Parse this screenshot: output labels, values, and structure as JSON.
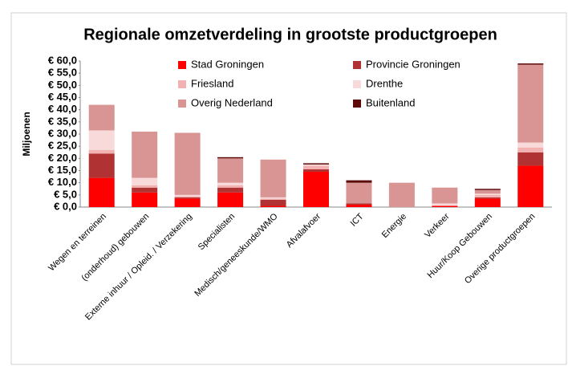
{
  "chart_data": {
    "type": "stacked_bar",
    "title": "Regionale omzetverdeling in grootste productgroepen",
    "y_axis_label": "Miljoenen",
    "categories": [
      "Wegen en terreinen",
      "(onderhoud) gebouwen",
      "Externe inhuur / Opleid. / Verzekering",
      "Specialisten",
      "Medisch/geneeskunde/WMO",
      "Afvalafvoer",
      "ICT",
      "Energie",
      "Verkeer",
      "Huur/Koop Gebouwen",
      "Overige productgroepen"
    ],
    "series": [
      {
        "name": "Stad Groningen",
        "color": "#ff0000",
        "values": [
          12,
          6,
          3.5,
          6,
          0.5,
          14.5,
          1,
          0,
          0.5,
          3.5,
          17
        ]
      },
      {
        "name": "Provincie Groningen",
        "color": "#b03232",
        "values": [
          10,
          2,
          0.5,
          2,
          2.5,
          1,
          0.5,
          0,
          0,
          0.5,
          5.5
        ]
      },
      {
        "name": "Friesland",
        "color": "#f2b2b2",
        "values": [
          1.5,
          1,
          0.5,
          1,
          0.5,
          1.5,
          0,
          0,
          0,
          1,
          2
        ]
      },
      {
        "name": "Drenthe",
        "color": "#f8dada",
        "values": [
          8,
          3,
          0.5,
          1,
          0.5,
          0.5,
          0,
          0,
          1,
          0.5,
          2
        ]
      },
      {
        "name": "Overig Nederland",
        "color": "#d99494",
        "values": [
          10.5,
          19,
          25.5,
          10,
          15.5,
          0,
          8.5,
          10,
          6.5,
          1.5,
          32
        ]
      },
      {
        "name": "Buitenland",
        "color": "#5c0a0a",
        "values": [
          0,
          0,
          0,
          0.5,
          0,
          0.5,
          1,
          0,
          0,
          0.5,
          0.5
        ]
      }
    ],
    "ylim": [
      0,
      60
    ],
    "yticks": [
      {
        "value": 0,
        "label": "€ 0,0"
      },
      {
        "value": 5,
        "label": "€ 5,0"
      },
      {
        "value": 10,
        "label": "€ 10,0"
      },
      {
        "value": 15,
        "label": "€ 15,0"
      },
      {
        "value": 20,
        "label": "€ 20,0"
      },
      {
        "value": 25,
        "label": "€ 25,0"
      },
      {
        "value": 30,
        "label": "€ 30,0"
      },
      {
        "value": 35,
        "label": "€ 35,0"
      },
      {
        "value": 40,
        "label": "€ 40,0"
      },
      {
        "value": 45,
        "label": "€ 45,0"
      },
      {
        "value": 50,
        "label": "€ 50,0"
      },
      {
        "value": 55,
        "label": "€ 55,0"
      },
      {
        "value": 60,
        "label": "€ 60,0"
      }
    ],
    "grid": false
  }
}
